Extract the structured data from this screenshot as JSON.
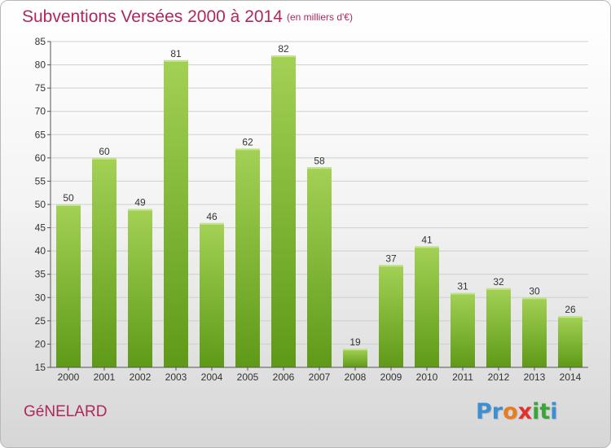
{
  "header": {
    "title": "Subventions Versées 2000 à 2014",
    "subtitle": "(en milliers d'€)"
  },
  "footer": {
    "commune": "GéNELARD",
    "logo_letters": [
      "P",
      "r",
      "o",
      "x",
      "i",
      "t",
      "i"
    ],
    "logo_colors": [
      "#3c8fd0",
      "#3c8fd0",
      "#e87c1e",
      "#e2312d",
      "#3aa53a",
      "#3aa53a",
      "#3c8fd0"
    ]
  },
  "colors": {
    "title": "#b0265e",
    "bar_top": "#a3d155",
    "bar_bottom": "#5e9a17",
    "axis": "#555555",
    "grid": "#cfcfcf"
  },
  "chart_data": {
    "type": "bar",
    "categories": [
      "2000",
      "2001",
      "2002",
      "2003",
      "2004",
      "2005",
      "2006",
      "2007",
      "2008",
      "2009",
      "2010",
      "2011",
      "2012",
      "2013",
      "2014"
    ],
    "values": [
      50,
      60,
      49,
      81,
      46,
      62,
      82,
      58,
      19,
      37,
      41,
      31,
      32,
      30,
      26
    ],
    "ylim": [
      15,
      85
    ],
    "yticks": [
      15,
      20,
      25,
      30,
      35,
      40,
      45,
      50,
      55,
      60,
      65,
      70,
      75,
      80,
      85
    ],
    "grid": true,
    "xlabel": "",
    "ylabel": ""
  }
}
